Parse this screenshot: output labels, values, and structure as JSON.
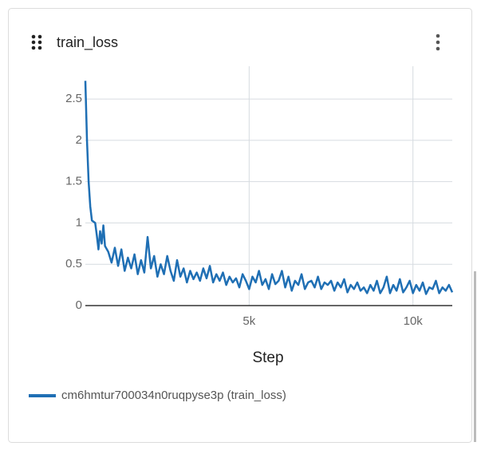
{
  "panel": {
    "title": "train_loss"
  },
  "chart_data": {
    "type": "line",
    "x_label": "Step",
    "x": [
      0,
      50,
      100,
      150,
      200,
      300,
      350,
      400,
      450,
      500,
      550,
      600,
      700,
      800,
      900,
      1000,
      1100,
      1200,
      1300,
      1400,
      1500,
      1600,
      1700,
      1800,
      1900,
      2000,
      2100,
      2200,
      2300,
      2400,
      2500,
      2600,
      2700,
      2800,
      2900,
      3000,
      3100,
      3200,
      3300,
      3400,
      3500,
      3600,
      3700,
      3800,
      3900,
      4000,
      4100,
      4200,
      4300,
      4400,
      4500,
      4600,
      4700,
      4800,
      4900,
      5000,
      5100,
      5200,
      5300,
      5400,
      5500,
      5600,
      5700,
      5800,
      5900,
      6000,
      6100,
      6200,
      6300,
      6400,
      6500,
      6600,
      6700,
      6800,
      6900,
      7000,
      7100,
      7200,
      7300,
      7400,
      7500,
      7600,
      7700,
      7800,
      7900,
      8000,
      8100,
      8200,
      8300,
      8400,
      8500,
      8600,
      8700,
      8800,
      8900,
      9000,
      9100,
      9200,
      9300,
      9400,
      9500,
      9600,
      9700,
      9800,
      9900,
      10000,
      10100,
      10200,
      10300,
      10400,
      10500,
      10600,
      10700,
      10800,
      10900,
      11000,
      11100,
      11200
    ],
    "series": [
      {
        "name": "cm6hmtur700034n0ruqpyse3p (train_loss)",
        "color": "#1f6fb4",
        "values": [
          2.72,
          2.0,
          1.5,
          1.2,
          1.03,
          1.0,
          0.85,
          0.68,
          0.9,
          0.75,
          0.97,
          0.72,
          0.65,
          0.52,
          0.7,
          0.48,
          0.68,
          0.42,
          0.58,
          0.45,
          0.62,
          0.38,
          0.55,
          0.4,
          0.83,
          0.45,
          0.6,
          0.35,
          0.5,
          0.38,
          0.6,
          0.42,
          0.3,
          0.55,
          0.35,
          0.45,
          0.28,
          0.42,
          0.32,
          0.4,
          0.3,
          0.45,
          0.33,
          0.48,
          0.28,
          0.38,
          0.3,
          0.4,
          0.25,
          0.35,
          0.28,
          0.33,
          0.22,
          0.38,
          0.3,
          0.2,
          0.35,
          0.28,
          0.42,
          0.25,
          0.32,
          0.2,
          0.38,
          0.26,
          0.3,
          0.42,
          0.22,
          0.35,
          0.18,
          0.3,
          0.25,
          0.38,
          0.2,
          0.28,
          0.3,
          0.22,
          0.35,
          0.2,
          0.28,
          0.25,
          0.3,
          0.18,
          0.28,
          0.22,
          0.32,
          0.16,
          0.25,
          0.2,
          0.28,
          0.18,
          0.22,
          0.15,
          0.25,
          0.18,
          0.3,
          0.15,
          0.22,
          0.35,
          0.15,
          0.25,
          0.18,
          0.32,
          0.16,
          0.22,
          0.3,
          0.15,
          0.25,
          0.18,
          0.28,
          0.14,
          0.22,
          0.2,
          0.3,
          0.15,
          0.22,
          0.18,
          0.25,
          0.16
        ]
      }
    ],
    "xlim": [
      0,
      11200
    ],
    "ylim": [
      0,
      2.8
    ],
    "xticks": [
      {
        "value": 5000,
        "label": "5k"
      },
      {
        "value": 10000,
        "label": "10k"
      }
    ],
    "yticks": [
      0,
      0.5,
      1,
      1.5,
      2,
      2.5
    ],
    "grid": true
  }
}
